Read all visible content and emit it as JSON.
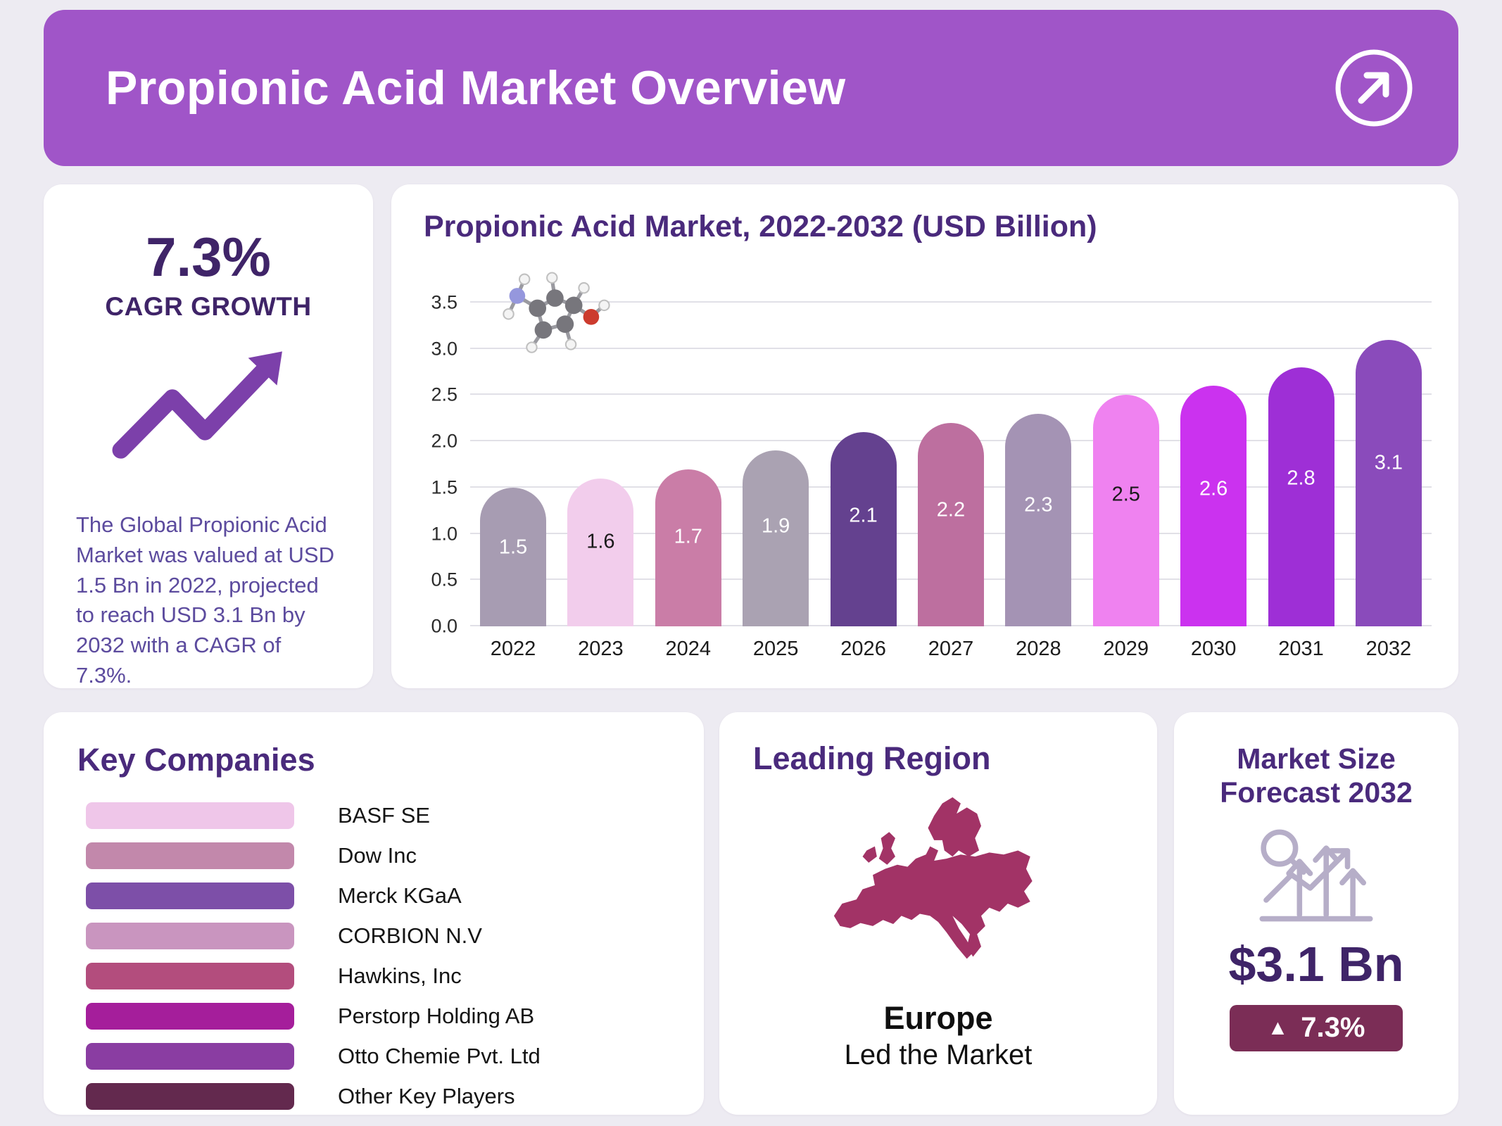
{
  "header": {
    "title": "Propionic Acid Market Overview"
  },
  "cagr_card": {
    "value": "7.3%",
    "label": "CAGR GROWTH",
    "description": "The Global Propionic Acid Market was valued at USD 1.5 Bn in 2022, projected to reach USD 3.1 Bn by 2032 with a CAGR of 7.3%."
  },
  "chart_data": {
    "type": "bar",
    "title": "Propionic Acid Market, 2022-2032 (USD Billion)",
    "categories": [
      "2022",
      "2023",
      "2024",
      "2025",
      "2026",
      "2027",
      "2028",
      "2029",
      "2030",
      "2031",
      "2032"
    ],
    "values": [
      1.5,
      1.6,
      1.7,
      1.9,
      2.1,
      2.2,
      2.3,
      2.5,
      2.6,
      2.8,
      3.1
    ],
    "xlabel": "",
    "ylabel": "",
    "ylim": [
      0,
      3.5
    ],
    "yticks": [
      "0.0",
      "0.5",
      "1.0",
      "1.5",
      "2.0",
      "2.5",
      "3.0",
      "3.5"
    ],
    "grid": true,
    "legend": false,
    "bar_colors": [
      "#a79cb2",
      "#f2cdec",
      "#ca7da7",
      "#aaa2b2",
      "#64418f",
      "#bd6f9f",
      "#a493b4",
      "#ef82f0",
      "#cb32ef",
      "#9e2fd6",
      "#8a4bbb"
    ],
    "label_colors": [
      "#ffffff",
      "#1a1a1a",
      "#ffffff",
      "#ffffff",
      "#ffffff",
      "#ffffff",
      "#ffffff",
      "#1a1a1a",
      "#ffffff",
      "#ffffff",
      "#ffffff"
    ]
  },
  "key_companies": {
    "title": "Key Companies",
    "items": [
      {
        "name": "BASF SE",
        "color": "#efc6e9"
      },
      {
        "name": "Dow Inc",
        "color": "#c288ab"
      },
      {
        "name": "Merck KGaA",
        "color": "#7d4fa8"
      },
      {
        "name": "CORBION N.V",
        "color": "#c995bf"
      },
      {
        "name": "Hawkins, Inc",
        "color": "#b34d7d"
      },
      {
        "name": "Perstorp Holding AB",
        "color": "#a51e9b"
      },
      {
        "name": "Otto Chemie Pvt. Ltd",
        "color": "#8a3da2"
      },
      {
        "name": "Other Key Players",
        "color": "#63294e"
      }
    ]
  },
  "leading_region": {
    "title": "Leading Region",
    "region": "Europe",
    "subtitle": "Led the Market",
    "map_color": "#a23366"
  },
  "market_size": {
    "title": "Market Size Forecast 2032",
    "value": "$3.1 Bn",
    "change": "7.3%",
    "badge_color": "#7b2d56"
  }
}
